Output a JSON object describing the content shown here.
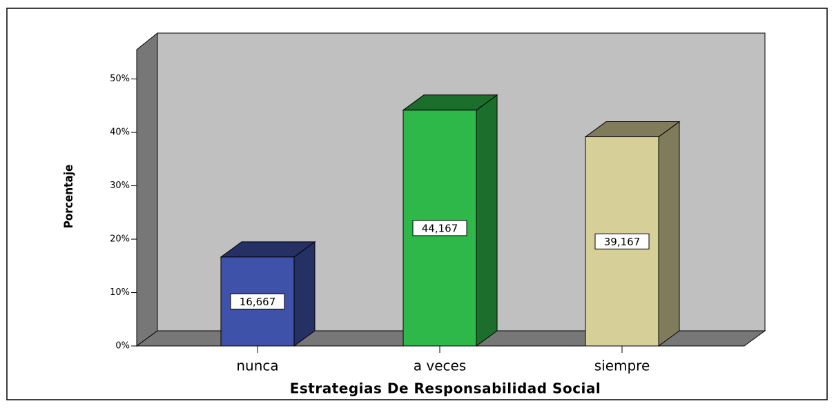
{
  "chart_data": {
    "type": "bar",
    "y_label": "Porcentaje",
    "x_label": "Estrategias De Responsabilidad Social",
    "categories": [
      "nunca",
      "a veces",
      "siempre"
    ],
    "values": [
      16.667,
      44.167,
      39.167
    ],
    "value_labels": [
      "16,667",
      "44,167",
      "39,167"
    ],
    "colors": [
      "#3d52a8",
      "#2fb84a",
      "#d6cf98"
    ],
    "ylim": [
      0,
      55.5
    ],
    "yticks": [
      {
        "value": 0,
        "label": "0%"
      },
      {
        "value": 10,
        "label": "10%"
      },
      {
        "value": 20,
        "label": "20%"
      },
      {
        "value": 30,
        "label": "30%"
      },
      {
        "value": 40,
        "label": "40%"
      },
      {
        "value": 50,
        "label": "50%"
      }
    ]
  }
}
